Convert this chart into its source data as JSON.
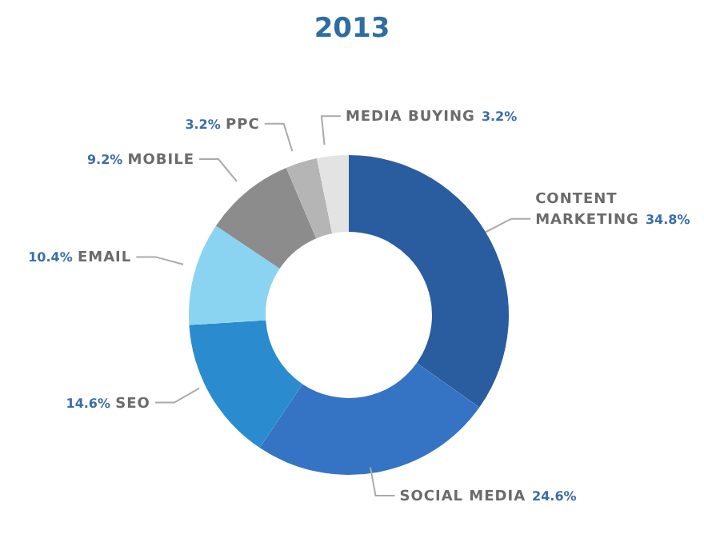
{
  "chart_data": {
    "type": "donut",
    "title": "2013",
    "categories": [
      "CONTENT MARKETING",
      "SOCIAL MEDIA",
      "SEO",
      "EMAIL",
      "MOBILE",
      "PPC",
      "MEDIA BUYING"
    ],
    "values": [
      34.8,
      24.6,
      14.6,
      10.4,
      9.2,
      3.2,
      3.2
    ],
    "value_labels": [
      "34.8%",
      "24.6%",
      "14.6%",
      "10.4%",
      "9.2%",
      "3.2%",
      "3.2%"
    ],
    "colors": [
      "#2a5d9f",
      "#3574c4",
      "#2a8ccf",
      "#8ad4f2",
      "#8c8c8c",
      "#b5b5b5",
      "#e3e3e3"
    ]
  }
}
